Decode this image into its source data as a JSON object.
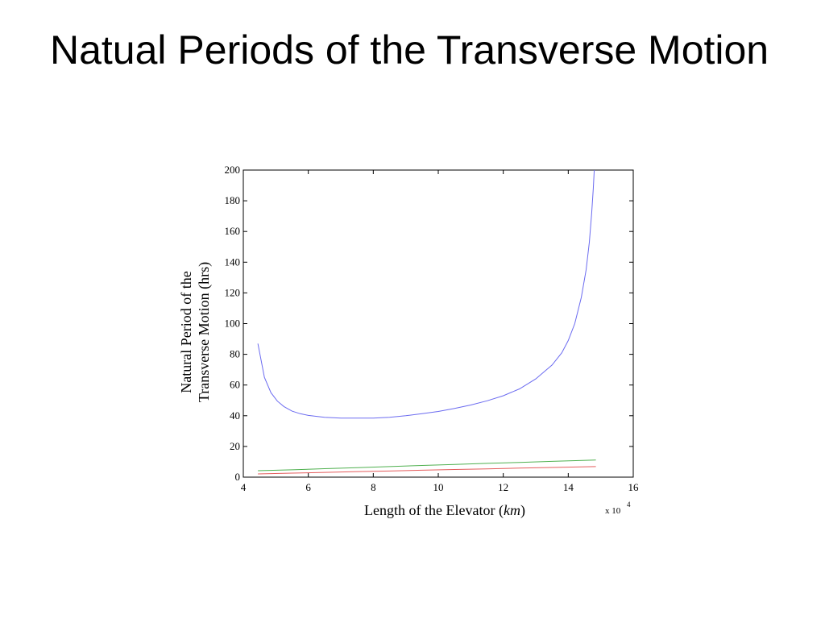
{
  "slide": {
    "title": "Natual Periods of the Transverse Motion"
  },
  "chart_data": {
    "type": "line",
    "title": "",
    "xlabel": "Length of the Elevator (",
    "xlabel_unit": "km",
    "xlabel_close": ")",
    "ylabel_line1": "Natural  Period of the",
    "ylabel_line2": "Transverse Motion (hrs)",
    "x_multiplier": "x 10",
    "x_multiplier_exponent": "4",
    "xlim": [
      4,
      16
    ],
    "ylim": [
      0,
      200
    ],
    "x_ticks": [
      4,
      6,
      8,
      10,
      12,
      14,
      16
    ],
    "y_ticks": [
      0,
      20,
      40,
      60,
      80,
      100,
      120,
      140,
      160,
      180,
      200
    ],
    "grid": false,
    "legend": "none",
    "series": [
      {
        "color": "#6b6bf0",
        "points": [
          [
            4.45,
            87
          ],
          [
            4.65,
            65
          ],
          [
            4.85,
            55
          ],
          [
            5.05,
            49.5
          ],
          [
            5.25,
            46
          ],
          [
            5.5,
            43
          ],
          [
            5.75,
            41.3
          ],
          [
            6.0,
            40.2
          ],
          [
            6.5,
            39
          ],
          [
            7.0,
            38.5
          ],
          [
            7.5,
            38.4
          ],
          [
            8.0,
            38.5
          ],
          [
            8.5,
            39
          ],
          [
            9.0,
            40
          ],
          [
            9.5,
            41.3
          ],
          [
            10.0,
            42.8
          ],
          [
            10.5,
            44.7
          ],
          [
            11.0,
            47
          ],
          [
            11.5,
            49.7
          ],
          [
            12.0,
            53
          ],
          [
            12.5,
            57.5
          ],
          [
            13.0,
            64
          ],
          [
            13.5,
            73
          ],
          [
            13.8,
            81
          ],
          [
            14.0,
            89
          ],
          [
            14.2,
            100
          ],
          [
            14.4,
            117
          ],
          [
            14.55,
            135
          ],
          [
            14.65,
            153
          ],
          [
            14.72,
            172
          ],
          [
            14.77,
            188
          ],
          [
            14.8,
            200
          ]
        ]
      },
      {
        "color": "#4fb04f",
        "points": [
          [
            4.45,
            4.2
          ],
          [
            5.5,
            4.8
          ],
          [
            6.5,
            5.5
          ],
          [
            7.5,
            6.2
          ],
          [
            8.5,
            6.9
          ],
          [
            9.5,
            7.6
          ],
          [
            10.5,
            8.3
          ],
          [
            11.5,
            9.0
          ],
          [
            12.5,
            9.6
          ],
          [
            13.5,
            10.3
          ],
          [
            14.85,
            11.2
          ]
        ]
      },
      {
        "color": "#e45c5c",
        "points": [
          [
            4.45,
            2.1
          ],
          [
            5.5,
            2.6
          ],
          [
            6.5,
            3.1
          ],
          [
            7.5,
            3.6
          ],
          [
            8.5,
            4.0
          ],
          [
            9.5,
            4.5
          ],
          [
            10.5,
            5.0
          ],
          [
            11.5,
            5.4
          ],
          [
            12.5,
            5.9
          ],
          [
            13.5,
            6.3
          ],
          [
            14.85,
            6.9
          ]
        ]
      }
    ]
  }
}
